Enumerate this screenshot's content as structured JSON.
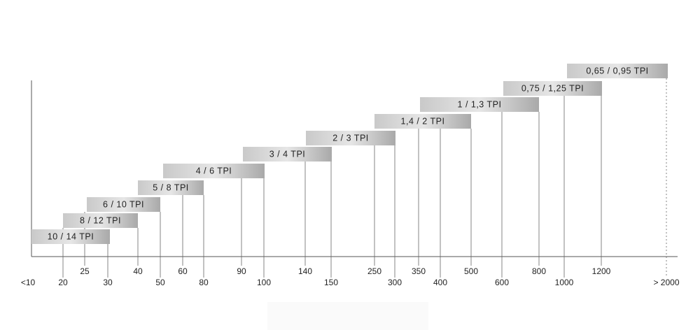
{
  "bars": [
    "10 / 14 TPI",
    "8 / 12 TPI",
    "6 / 10 TPI",
    "5 / 8 TPI",
    "4 / 6 TPI",
    "3 / 4 TPI",
    "2 / 3 TPI",
    "1,4 / 2 TPI",
    "1 / 1,3 TPI",
    "0,75 / 1,25 TPI",
    "0,65 / 0,95 TPI"
  ],
  "ticks": [
    "<10",
    "20",
    "25",
    "30",
    "40",
    "50",
    "60",
    "80",
    "90",
    "100",
    "140",
    "150",
    "250",
    "300",
    "350",
    "400",
    "500",
    "600",
    "800",
    "1000",
    "1200",
    "> 2000"
  ]
}
